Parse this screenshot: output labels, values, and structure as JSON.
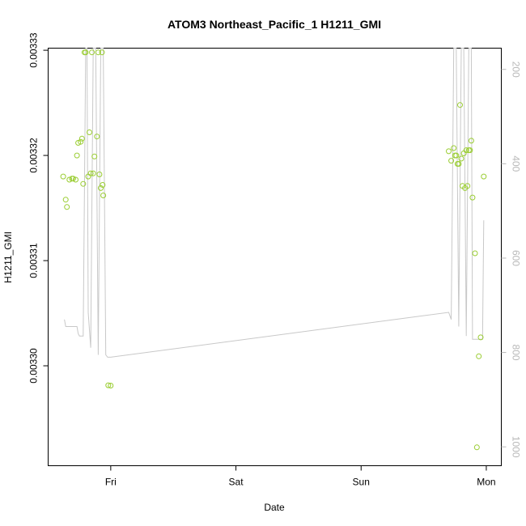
{
  "chart_data": {
    "type": "scatter",
    "title": "ATOM3 Northeast_Pacific_1 H1211_GMI",
    "xlabel": "Date",
    "ylabel": "H1211_GMI",
    "x_ticks": [
      {
        "label": "Fri",
        "value": 1.0
      },
      {
        "label": "Sat",
        "value": 2.0
      },
      {
        "label": "Sun",
        "value": 3.0
      },
      {
        "label": "Mon",
        "value": 4.0
      }
    ],
    "xlim": [
      0.5,
      4.12
    ],
    "y_ticks": [
      0.0033,
      0.00331,
      0.00332,
      0.00333
    ],
    "y_tick_labels": [
      "0.00330",
      "0.00331",
      "0.00332",
      "0.00333"
    ],
    "ylim": [
      0.0032905,
      0.0033302
    ],
    "right_axis": {
      "label": "",
      "ticks": [
        200,
        400,
        600,
        800,
        1000
      ],
      "lim": [
        1040,
        155
      ],
      "color": "#b8b8b8"
    },
    "grid": false,
    "series": [
      {
        "kind": "points",
        "color": "#9acd32",
        "points": [
          [
            0.62,
            0.003318
          ],
          [
            0.64,
            0.0033158
          ],
          [
            0.65,
            0.0033151
          ],
          [
            0.67,
            0.0033177
          ],
          [
            0.69,
            0.0033178
          ],
          [
            0.7,
            0.0033178
          ],
          [
            0.72,
            0.0033177
          ],
          [
            0.73,
            0.00332
          ],
          [
            0.74,
            0.0033212
          ],
          [
            0.76,
            0.0033213
          ],
          [
            0.77,
            0.0033216
          ],
          [
            0.78,
            0.0033173
          ],
          [
            0.79,
            0.0033298
          ],
          [
            0.8,
            0.0033298
          ],
          [
            0.82,
            0.003318
          ],
          [
            0.83,
            0.0033222
          ],
          [
            0.84,
            0.0033183
          ],
          [
            0.85,
            0.0033298
          ],
          [
            0.86,
            0.0033183
          ],
          [
            0.87,
            0.0033199
          ],
          [
            0.89,
            0.0033218
          ],
          [
            0.9,
            0.0033298
          ],
          [
            0.91,
            0.0033182
          ],
          [
            0.92,
            0.0033169
          ],
          [
            0.93,
            0.0033298
          ],
          [
            0.935,
            0.0033172
          ],
          [
            0.94,
            0.0033162
          ],
          [
            0.98,
            0.00329815
          ],
          [
            1.0,
            0.00329812
          ],
          [
            3.7,
            0.0033204
          ],
          [
            3.72,
            0.0033195
          ],
          [
            3.74,
            0.0033207
          ],
          [
            3.75,
            0.00332
          ],
          [
            3.76,
            0.00332
          ],
          [
            3.77,
            0.0033192
          ],
          [
            3.78,
            0.0033192
          ],
          [
            3.79,
            0.0033248
          ],
          [
            3.8,
            0.0033197
          ],
          [
            3.81,
            0.0033171
          ],
          [
            3.82,
            0.0033202
          ],
          [
            3.83,
            0.0033169
          ],
          [
            3.84,
            0.0033205
          ],
          [
            3.85,
            0.0033171
          ],
          [
            3.86,
            0.0033205
          ],
          [
            3.87,
            0.0033205
          ],
          [
            3.88,
            0.0033214
          ],
          [
            3.89,
            0.003316
          ],
          [
            3.91,
            0.0033107
          ],
          [
            3.925,
            0.00329225
          ],
          [
            3.94,
            0.0033009
          ],
          [
            3.955,
            0.0033027
          ],
          [
            3.98,
            0.003318
          ]
        ]
      },
      {
        "kind": "line",
        "color": "#c8c8c8",
        "points": [
          [
            0.63,
            730
          ],
          [
            0.64,
            745
          ],
          [
            0.7,
            745
          ],
          [
            0.72,
            745
          ],
          [
            0.73,
            745
          ],
          [
            0.74,
            760
          ],
          [
            0.75,
            765
          ],
          [
            0.76,
            765
          ],
          [
            0.77,
            765
          ],
          [
            0.78,
            765
          ],
          [
            0.8,
            155
          ],
          [
            0.81,
            155
          ],
          [
            0.82,
            715
          ],
          [
            0.84,
            790
          ],
          [
            0.86,
            155
          ],
          [
            0.88,
            155
          ],
          [
            0.9,
            805
          ],
          [
            0.92,
            155
          ],
          [
            0.94,
            155
          ],
          [
            0.96,
            805
          ],
          [
            0.975,
            810
          ],
          [
            1.0,
            810
          ],
          [
            3.7,
            715
          ],
          [
            3.72,
            730
          ],
          [
            3.74,
            155
          ],
          [
            3.76,
            155
          ],
          [
            3.78,
            745
          ],
          [
            3.8,
            155
          ],
          [
            3.82,
            155
          ],
          [
            3.84,
            765
          ],
          [
            3.86,
            155
          ],
          [
            3.88,
            155
          ],
          [
            3.89,
            772
          ],
          [
            3.9,
            772
          ],
          [
            3.91,
            772
          ],
          [
            3.92,
            772
          ],
          [
            3.93,
            772
          ],
          [
            3.94,
            772
          ],
          [
            3.955,
            772
          ],
          [
            3.97,
            772
          ],
          [
            3.98,
            520
          ]
        ]
      }
    ]
  }
}
